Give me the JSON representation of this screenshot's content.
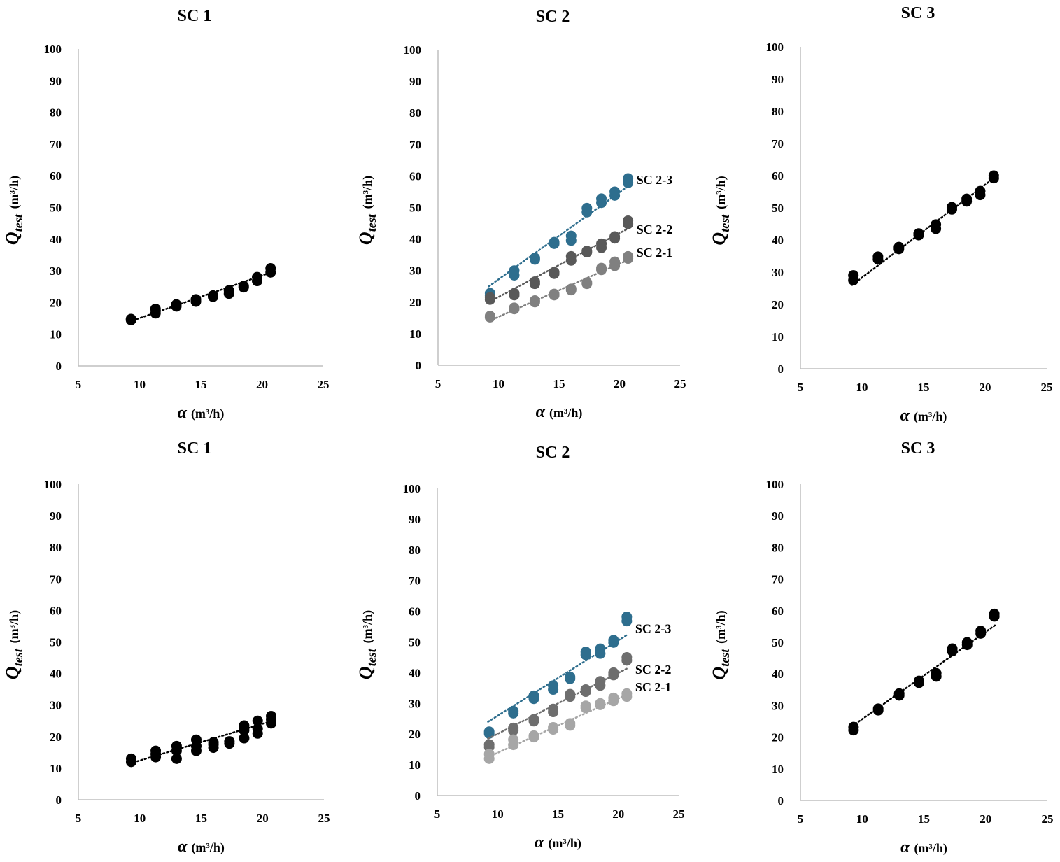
{
  "chart_data": [
    {
      "type": "scatter",
      "title": "SC 1",
      "xlabel_symbol": "α",
      "xlabel_unit": "(m³/h)",
      "ylabel_symbol": "Q",
      "ylabel_subscript": "test",
      "ylabel_unit": "(m³/h)",
      "xlim": [
        5,
        25
      ],
      "ylim": [
        0,
        100
      ],
      "xticks": [
        5,
        10,
        15,
        20,
        25
      ],
      "yticks": [
        0,
        10,
        20,
        30,
        40,
        50,
        60,
        70,
        80,
        90,
        100
      ],
      "series": [
        {
          "name": "SC 1",
          "color": "#000000",
          "trend": [
            [
              9.2,
              14.0
            ],
            [
              20.8,
              29.6
            ]
          ],
          "points": [
            [
              9.3,
              14.5
            ],
            [
              9.3,
              14.8
            ],
            [
              11.3,
              16.6
            ],
            [
              11.3,
              18.0
            ],
            [
              13.0,
              18.8
            ],
            [
              13.0,
              19.4
            ],
            [
              14.6,
              20.3
            ],
            [
              14.6,
              21.0
            ],
            [
              16.0,
              21.8
            ],
            [
              16.0,
              22.2
            ],
            [
              17.3,
              22.8
            ],
            [
              17.3,
              23.8
            ],
            [
              18.5,
              24.8
            ],
            [
              18.5,
              25.2
            ],
            [
              19.6,
              26.8
            ],
            [
              19.6,
              28.0
            ],
            [
              20.7,
              29.5
            ],
            [
              20.7,
              30.8
            ]
          ]
        }
      ]
    },
    {
      "type": "scatter",
      "title": "SC 2",
      "xlabel_symbol": "α",
      "xlabel_unit": "(m³/h)",
      "ylabel_symbol": "Q",
      "ylabel_subscript": "test",
      "ylabel_unit": "(m³/h)",
      "xlim": [
        5,
        25
      ],
      "ylim": [
        0,
        100
      ],
      "xticks": [
        5,
        10,
        15,
        20,
        25
      ],
      "yticks": [
        0,
        10,
        20,
        30,
        40,
        50,
        60,
        70,
        80,
        90,
        100
      ],
      "series": [
        {
          "name": "SC 2-3",
          "color": "#2e6e8e",
          "trend": [
            [
              9.2,
              25.0
            ],
            [
              20.8,
              57.0
            ]
          ],
          "points": [
            [
              9.3,
              22.0
            ],
            [
              9.3,
              22.8
            ],
            [
              11.3,
              28.5
            ],
            [
              11.3,
              30.0
            ],
            [
              13.0,
              33.5
            ],
            [
              13.0,
              34.0
            ],
            [
              14.6,
              38.5
            ],
            [
              14.6,
              39.0
            ],
            [
              16.0,
              39.5
            ],
            [
              16.0,
              41.0
            ],
            [
              17.3,
              48.5
            ],
            [
              17.3,
              49.8
            ],
            [
              18.5,
              51.5
            ],
            [
              18.5,
              52.8
            ],
            [
              19.6,
              53.8
            ],
            [
              19.6,
              55.0
            ],
            [
              20.7,
              57.8
            ],
            [
              20.7,
              59.2
            ]
          ]
        },
        {
          "name": "SC 2-2",
          "color": "#595959",
          "trend": [
            [
              9.2,
              20.0
            ],
            [
              20.8,
              43.5
            ]
          ],
          "points": [
            [
              9.3,
              20.8
            ],
            [
              9.3,
              21.5
            ],
            [
              11.3,
              22.2
            ],
            [
              11.3,
              22.8
            ],
            [
              13.0,
              25.8
            ],
            [
              13.0,
              26.5
            ],
            [
              14.6,
              29.0
            ],
            [
              14.6,
              29.5
            ],
            [
              16.0,
              33.2
            ],
            [
              16.0,
              34.5
            ],
            [
              17.3,
              35.8
            ],
            [
              17.3,
              36.2
            ],
            [
              18.5,
              37.2
            ],
            [
              18.5,
              38.5
            ],
            [
              19.6,
              40.2
            ],
            [
              19.6,
              40.8
            ],
            [
              20.7,
              44.8
            ],
            [
              20.7,
              45.8
            ]
          ]
        },
        {
          "name": "SC 2-1",
          "color": "#808080",
          "trend": [
            [
              9.2,
              14.0
            ],
            [
              20.8,
              33.5
            ]
          ],
          "points": [
            [
              9.3,
              15.2
            ],
            [
              9.3,
              15.6
            ],
            [
              11.3,
              17.8
            ],
            [
              11.3,
              18.2
            ],
            [
              13.0,
              20.0
            ],
            [
              13.0,
              20.5
            ],
            [
              14.6,
              22.2
            ],
            [
              14.6,
              22.6
            ],
            [
              16.0,
              23.8
            ],
            [
              16.0,
              24.2
            ],
            [
              17.3,
              25.8
            ],
            [
              17.3,
              26.2
            ],
            [
              18.5,
              30.2
            ],
            [
              18.5,
              30.8
            ],
            [
              19.6,
              31.5
            ],
            [
              19.6,
              32.8
            ],
            [
              20.7,
              33.8
            ],
            [
              20.7,
              34.5
            ]
          ]
        }
      ]
    },
    {
      "type": "scatter",
      "title": "SC 3",
      "xlabel_symbol": "α",
      "xlabel_unit": "(m³/h)",
      "ylabel_symbol": "Q",
      "ylabel_subscript": "test",
      "ylabel_unit": "(m³/h)",
      "xlim": [
        5,
        25
      ],
      "ylim": [
        0,
        100
      ],
      "xticks": [
        5,
        10,
        15,
        20,
        25
      ],
      "yticks": [
        0,
        10,
        20,
        30,
        40,
        50,
        60,
        70,
        80,
        90,
        100
      ],
      "series": [
        {
          "name": "SC 3",
          "color": "#000000",
          "trend": [
            [
              9.2,
              26.0
            ],
            [
              20.8,
              59.5
            ]
          ],
          "points": [
            [
              9.3,
              27.5
            ],
            [
              9.3,
              29.0
            ],
            [
              11.3,
              34.0
            ],
            [
              11.3,
              34.8
            ],
            [
              13.0,
              37.2
            ],
            [
              13.0,
              37.8
            ],
            [
              14.6,
              41.5
            ],
            [
              14.6,
              42.0
            ],
            [
              16.0,
              43.5
            ],
            [
              16.0,
              44.8
            ],
            [
              17.3,
              49.5
            ],
            [
              17.3,
              50.2
            ],
            [
              18.5,
              52.0
            ],
            [
              18.5,
              52.8
            ],
            [
              19.6,
              54.0
            ],
            [
              19.6,
              55.2
            ],
            [
              20.7,
              59.2
            ],
            [
              20.7,
              60.0
            ]
          ]
        }
      ]
    },
    {
      "type": "scatter",
      "title": "SC 1",
      "xlabel_symbol": "α",
      "xlabel_unit": "(m³/h)",
      "ylabel_symbol": "Q",
      "ylabel_subscript": "test",
      "ylabel_unit": "(m³/h)",
      "xlim": [
        5,
        25
      ],
      "ylim": [
        0,
        100
      ],
      "xticks": [
        5,
        10,
        15,
        20,
        25
      ],
      "yticks": [
        0,
        10,
        20,
        30,
        40,
        50,
        60,
        70,
        80,
        90,
        100
      ],
      "series": [
        {
          "name": "SC 1",
          "color": "#000000",
          "trend": [
            [
              9.2,
              11.5
            ],
            [
              20.8,
              25.0
            ]
          ],
          "points": [
            [
              9.3,
              12.0
            ],
            [
              9.3,
              13.0
            ],
            [
              11.3,
              13.5
            ],
            [
              11.3,
              14.5
            ],
            [
              11.3,
              15.5
            ],
            [
              13.0,
              13.0
            ],
            [
              13.0,
              15.5
            ],
            [
              13.0,
              17.0
            ],
            [
              14.6,
              15.5
            ],
            [
              14.6,
              17.0
            ],
            [
              14.6,
              19.0
            ],
            [
              16.0,
              16.5
            ],
            [
              16.0,
              17.5
            ],
            [
              16.0,
              18.2
            ],
            [
              17.3,
              17.8
            ],
            [
              17.3,
              18.5
            ],
            [
              18.5,
              19.5
            ],
            [
              18.5,
              22.0
            ],
            [
              18.5,
              23.5
            ],
            [
              19.6,
              21.0
            ],
            [
              19.6,
              22.5
            ],
            [
              19.6,
              25.0
            ],
            [
              20.7,
              24.2
            ],
            [
              20.7,
              25.5
            ],
            [
              20.7,
              26.5
            ]
          ]
        }
      ]
    },
    {
      "type": "scatter",
      "title": "SC 2",
      "xlabel_symbol": "α",
      "xlabel_unit": "(m³/h)",
      "ylabel_symbol": "Q",
      "ylabel_subscript": "test",
      "ylabel_unit": "(m³/h)",
      "xlim": [
        5,
        25
      ],
      "ylim": [
        0,
        100
      ],
      "xticks": [
        5,
        10,
        15,
        20,
        25
      ],
      "yticks": [
        0,
        10,
        20,
        30,
        40,
        50,
        60,
        70,
        80,
        90,
        100
      ],
      "series": [
        {
          "name": "SC 2-3",
          "color": "#2e6e8e",
          "trend": [
            [
              9.2,
              24.0
            ],
            [
              20.8,
              52.5
            ]
          ],
          "points": [
            [
              9.3,
              20.2
            ],
            [
              9.3,
              20.8
            ],
            [
              11.3,
              26.8
            ],
            [
              11.3,
              27.5
            ],
            [
              13.0,
              31.5
            ],
            [
              13.0,
              32.5
            ],
            [
              14.6,
              34.5
            ],
            [
              14.6,
              35.8
            ],
            [
              16.0,
              38.0
            ],
            [
              16.0,
              38.6
            ],
            [
              17.3,
              45.8
            ],
            [
              17.3,
              46.8
            ],
            [
              18.5,
              46.2
            ],
            [
              18.5,
              47.8
            ],
            [
              19.6,
              49.8
            ],
            [
              19.6,
              50.6
            ],
            [
              20.7,
              56.8
            ],
            [
              20.7,
              58.2
            ]
          ]
        },
        {
          "name": "SC 2-2",
          "color": "#6e6e6e",
          "trend": [
            [
              9.2,
              18.5
            ],
            [
              20.8,
              41.5
            ]
          ],
          "points": [
            [
              9.3,
              15.8
            ],
            [
              9.3,
              16.6
            ],
            [
              11.3,
              21.2
            ],
            [
              11.3,
              22.0
            ],
            [
              13.0,
              24.2
            ],
            [
              13.0,
              24.8
            ],
            [
              14.6,
              27.2
            ],
            [
              14.6,
              28.2
            ],
            [
              16.0,
              32.2
            ],
            [
              16.0,
              33.0
            ],
            [
              17.3,
              33.8
            ],
            [
              17.3,
              34.5
            ],
            [
              18.5,
              35.8
            ],
            [
              18.5,
              37.2
            ],
            [
              19.6,
              39.2
            ],
            [
              19.6,
              40.0
            ],
            [
              20.7,
              44.0
            ],
            [
              20.7,
              45.0
            ]
          ]
        },
        {
          "name": "SC 2-1",
          "color": "#a6a6a6",
          "trend": [
            [
              9.2,
              12.5
            ],
            [
              20.8,
              33.0
            ]
          ],
          "points": [
            [
              9.3,
              12.0
            ],
            [
              9.3,
              13.5
            ],
            [
              11.3,
              16.5
            ],
            [
              11.3,
              18.2
            ],
            [
              13.0,
              19.0
            ],
            [
              13.0,
              19.5
            ],
            [
              14.6,
              21.5
            ],
            [
              14.6,
              22.2
            ],
            [
              16.0,
              22.8
            ],
            [
              16.0,
              23.5
            ],
            [
              17.3,
              28.5
            ],
            [
              17.3,
              29.2
            ],
            [
              18.5,
              29.5
            ],
            [
              18.5,
              30.0
            ],
            [
              19.6,
              30.8
            ],
            [
              19.6,
              31.8
            ],
            [
              20.7,
              32.2
            ],
            [
              20.7,
              33.2
            ]
          ]
        }
      ]
    },
    {
      "type": "scatter",
      "title": "SC 3",
      "xlabel_symbol": "α",
      "xlabel_unit": "(m³/h)",
      "ylabel_symbol": "Q",
      "ylabel_subscript": "test",
      "ylabel_unit": "(m³/h)",
      "xlim": [
        5,
        25
      ],
      "ylim": [
        0,
        100
      ],
      "xticks": [
        5,
        10,
        15,
        20,
        25
      ],
      "yticks": [
        0,
        10,
        20,
        30,
        40,
        50,
        60,
        70,
        80,
        90,
        100
      ],
      "series": [
        {
          "name": "SC 3",
          "color": "#000000",
          "trend": [
            [
              9.2,
              23.5
            ],
            [
              20.8,
              55.5
            ]
          ],
          "points": [
            [
              9.3,
              22.2
            ],
            [
              9.3,
              23.2
            ],
            [
              11.3,
              28.5
            ],
            [
              11.3,
              29.0
            ],
            [
              13.0,
              33.2
            ],
            [
              13.0,
              33.8
            ],
            [
              14.6,
              37.2
            ],
            [
              14.6,
              37.8
            ],
            [
              16.0,
              39.2
            ],
            [
              16.0,
              40.2
            ],
            [
              17.3,
              47.2
            ],
            [
              17.3,
              48.0
            ],
            [
              18.5,
              49.2
            ],
            [
              18.5,
              50.0
            ],
            [
              19.6,
              52.8
            ],
            [
              19.6,
              53.6
            ],
            [
              20.7,
              58.2
            ],
            [
              20.7,
              59.0
            ]
          ]
        }
      ]
    }
  ]
}
